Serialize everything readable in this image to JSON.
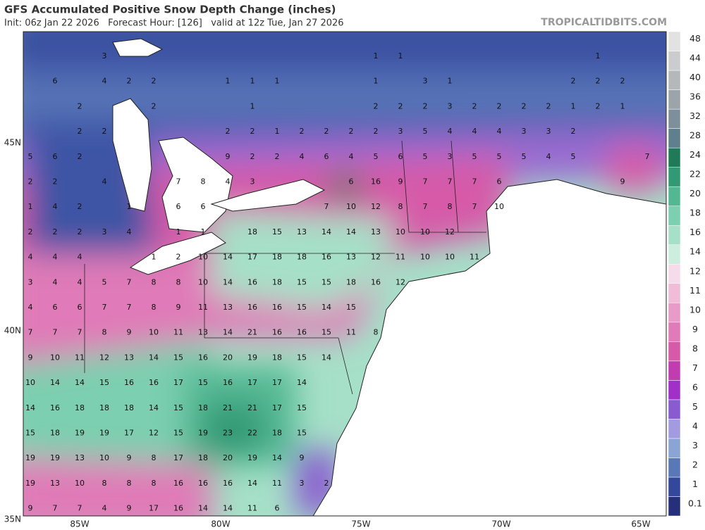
{
  "header": {
    "title": "GFS Accumulated Positive Snow Depth Change (inches)",
    "subtitle": "Init: 06z Jan 22 2026   Forecast Hour: [126]   valid at 12z Tue, Jan 27 2026",
    "site": "TROPICALTIDBITS.COM"
  },
  "colorbar": {
    "labels": [
      "0.1",
      "1",
      "2",
      "3",
      "4",
      "5",
      "6",
      "7",
      "8",
      "9",
      "10",
      "11",
      "12",
      "14",
      "16",
      "18",
      "20",
      "22",
      "24",
      "28",
      "32",
      "36",
      "40",
      "44",
      "48"
    ],
    "colors": [
      "#26307a",
      "#33489a",
      "#5a78b8",
      "#8aa4d4",
      "#a39be0",
      "#8a5ad0",
      "#a030c8",
      "#c03cb0",
      "#d65aa8",
      "#e07ab8",
      "#e89ac8",
      "#f0bcd8",
      "#f6dcea",
      "#cdeedf",
      "#a6e0c8",
      "#7ccfb0",
      "#52b893",
      "#319a74",
      "#1f7a58",
      "#5f7f8f",
      "#7e8f9c",
      "#9ca4aa",
      "#b4b8bb",
      "#cbcccd",
      "#e2e2e2"
    ]
  },
  "map": {
    "lat_labels": [
      "45N",
      "40N",
      "35N"
    ],
    "lon_labels": [
      "85W",
      "80W",
      "75W",
      "70W",
      "65W"
    ],
    "grid": [
      [
        null,
        null,
        null,
        3,
        null,
        null,
        null,
        null,
        null,
        null,
        null,
        null,
        null,
        null,
        1,
        1,
        null,
        null,
        null,
        null,
        null,
        null,
        null,
        1,
        null,
        null
      ],
      [
        null,
        6,
        null,
        4,
        2,
        2,
        null,
        null,
        1,
        1,
        1,
        null,
        null,
        null,
        1,
        null,
        3,
        1,
        null,
        null,
        null,
        null,
        2,
        2,
        2,
        null
      ],
      [
        null,
        null,
        2,
        null,
        null,
        2,
        null,
        null,
        null,
        1,
        null,
        null,
        null,
        null,
        2,
        2,
        2,
        3,
        2,
        2,
        2,
        2,
        1,
        2,
        1,
        null
      ],
      [
        null,
        null,
        2,
        2,
        null,
        null,
        null,
        null,
        2,
        2,
        1,
        2,
        2,
        2,
        2,
        3,
        5,
        4,
        4,
        4,
        3,
        3,
        2,
        null,
        null,
        null
      ],
      [
        5,
        6,
        2,
        null,
        null,
        null,
        null,
        null,
        9,
        2,
        2,
        4,
        6,
        4,
        5,
        6,
        5,
        3,
        5,
        5,
        5,
        4,
        5,
        null,
        null,
        7
      ],
      [
        2,
        2,
        null,
        4,
        null,
        null,
        7,
        8,
        4,
        3,
        null,
        null,
        null,
        6,
        16,
        9,
        7,
        7,
        7,
        6,
        null,
        null,
        null,
        null,
        9,
        null
      ],
      [
        1,
        4,
        2,
        null,
        1,
        null,
        6,
        6,
        null,
        null,
        null,
        null,
        7,
        10,
        12,
        8,
        7,
        8,
        7,
        10,
        null,
        null,
        null,
        null,
        null,
        null
      ],
      [
        2,
        2,
        2,
        3,
        4,
        null,
        1,
        1,
        null,
        18,
        15,
        13,
        14,
        14,
        13,
        10,
        10,
        12,
        null,
        null,
        null,
        null,
        null,
        null,
        null,
        null
      ],
      [
        4,
        4,
        4,
        null,
        null,
        1,
        2,
        10,
        14,
        17,
        18,
        18,
        16,
        13,
        12,
        11,
        10,
        10,
        11,
        null,
        null,
        null,
        null,
        null,
        null,
        null
      ],
      [
        3,
        4,
        4,
        5,
        7,
        8,
        8,
        10,
        14,
        16,
        18,
        15,
        15,
        18,
        16,
        12,
        null,
        null,
        null,
        null,
        null,
        null,
        null,
        null,
        null,
        null
      ],
      [
        4,
        6,
        6,
        7,
        7,
        8,
        9,
        11,
        13,
        16,
        16,
        15,
        14,
        15,
        null,
        null,
        null,
        null,
        null,
        null,
        null,
        null,
        null,
        null,
        null,
        null
      ],
      [
        7,
        7,
        7,
        8,
        9,
        10,
        11,
        13,
        14,
        21,
        16,
        16,
        15,
        11,
        8,
        null,
        null,
        null,
        null,
        null,
        null,
        null,
        null,
        null,
        null,
        null
      ],
      [
        9,
        10,
        11,
        12,
        13,
        14,
        15,
        16,
        20,
        19,
        18,
        15,
        14,
        null,
        null,
        null,
        null,
        null,
        null,
        null,
        null,
        null,
        null,
        null,
        null,
        null
      ],
      [
        10,
        14,
        14,
        15,
        16,
        16,
        17,
        15,
        16,
        17,
        17,
        14,
        null,
        null,
        null,
        null,
        null,
        null,
        null,
        null,
        null,
        null,
        null,
        null,
        null,
        null
      ],
      [
        14,
        16,
        18,
        18,
        18,
        14,
        15,
        18,
        21,
        21,
        17,
        15,
        null,
        null,
        null,
        null,
        null,
        null,
        null,
        null,
        null,
        null,
        null,
        null,
        null,
        null
      ],
      [
        15,
        18,
        19,
        19,
        17,
        12,
        15,
        19,
        23,
        22,
        18,
        15,
        null,
        null,
        null,
        null,
        null,
        null,
        null,
        null,
        null,
        null,
        null,
        null,
        null,
        null
      ],
      [
        19,
        19,
        13,
        10,
        9,
        8,
        17,
        18,
        20,
        19,
        14,
        9,
        null,
        null,
        null,
        null,
        null,
        null,
        null,
        null,
        null,
        null,
        null,
        null,
        null,
        null
      ],
      [
        19,
        13,
        10,
        8,
        8,
        8,
        16,
        16,
        16,
        14,
        11,
        3,
        2,
        null,
        null,
        null,
        null,
        null,
        null,
        null,
        null,
        null,
        null,
        null,
        null,
        null
      ],
      [
        9,
        7,
        7,
        4,
        9,
        17,
        16,
        14,
        14,
        11,
        6,
        null,
        null,
        null,
        null,
        null,
        null,
        null,
        null,
        null,
        null,
        null,
        null,
        null,
        null,
        null
      ]
    ]
  }
}
